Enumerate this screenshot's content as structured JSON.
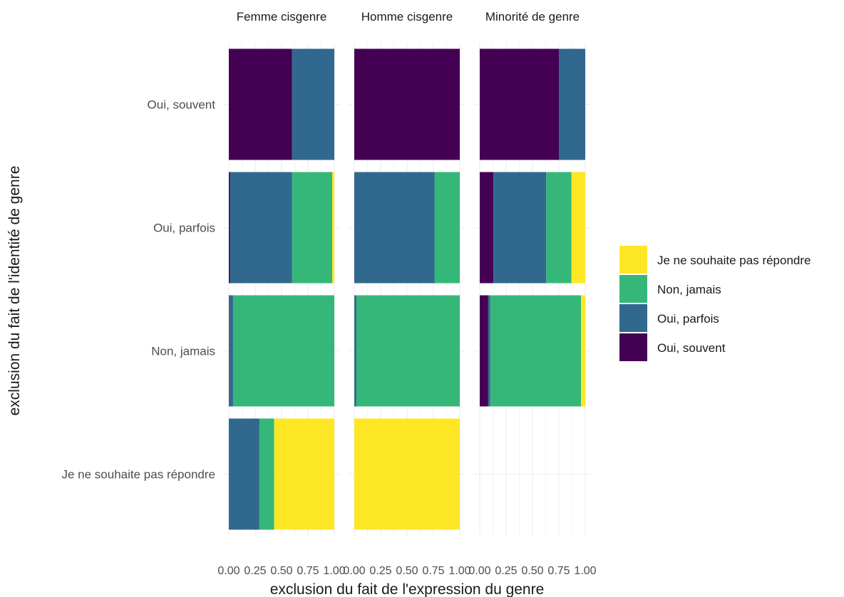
{
  "chart_data": {
    "type": "bar",
    "orientation": "horizontal",
    "stacked": "fill",
    "xlabel": "exclusion du fait de l'expression du genre",
    "ylabel": "exclusion du fait de l'identité de genre",
    "facets": [
      "Femme cisgenre",
      "Homme cisgenre",
      "Minorité de genre"
    ],
    "categories": [
      "Oui, souvent",
      "Oui, parfois",
      "Non, jamais",
      "Je ne souhaite pas répondre"
    ],
    "xlim": [
      0,
      1
    ],
    "xticks": [
      "0.00",
      "0.25",
      "0.50",
      "0.75",
      "1.00"
    ],
    "grid": true,
    "legend_position": "right",
    "series": [
      {
        "name": "Oui, souvent",
        "color": "#440154"
      },
      {
        "name": "Oui, parfois",
        "color": "#31688E"
      },
      {
        "name": "Non, jamais",
        "color": "#35B779"
      },
      {
        "name": "Je ne souhaite pas répondre",
        "color": "#FDE725"
      }
    ],
    "legend_order": [
      "Je ne souhaite pas répondre",
      "Non, jamais",
      "Oui, parfois",
      "Oui, souvent"
    ],
    "values": {
      "Femme cisgenre": {
        "Oui, souvent": [
          0.6,
          0.4,
          0.0,
          0.0
        ],
        "Oui, parfois": [
          0.01,
          0.59,
          0.38,
          0.02
        ],
        "Non, jamais": [
          0.0,
          0.04,
          0.96,
          0.0
        ],
        "Je ne souhaite pas répondre": [
          0.0,
          0.29,
          0.14,
          0.57
        ]
      },
      "Homme cisgenre": {
        "Oui, souvent": [
          1.0,
          0.0,
          0.0,
          0.0
        ],
        "Oui, parfois": [
          0.0,
          0.76,
          0.24,
          0.0
        ],
        "Non, jamais": [
          0.0,
          0.02,
          0.98,
          0.0
        ],
        "Je ne souhaite pas répondre": [
          0.0,
          0.0,
          0.0,
          1.0
        ]
      },
      "Minorité de genre": {
        "Oui, souvent": [
          0.75,
          0.25,
          0.0,
          0.0
        ],
        "Oui, parfois": [
          0.13,
          0.5,
          0.24,
          0.13
        ],
        "Non, jamais": [
          0.08,
          0.02,
          0.86,
          0.04
        ],
        "Je ne souhaite pas répondre": null
      }
    }
  }
}
